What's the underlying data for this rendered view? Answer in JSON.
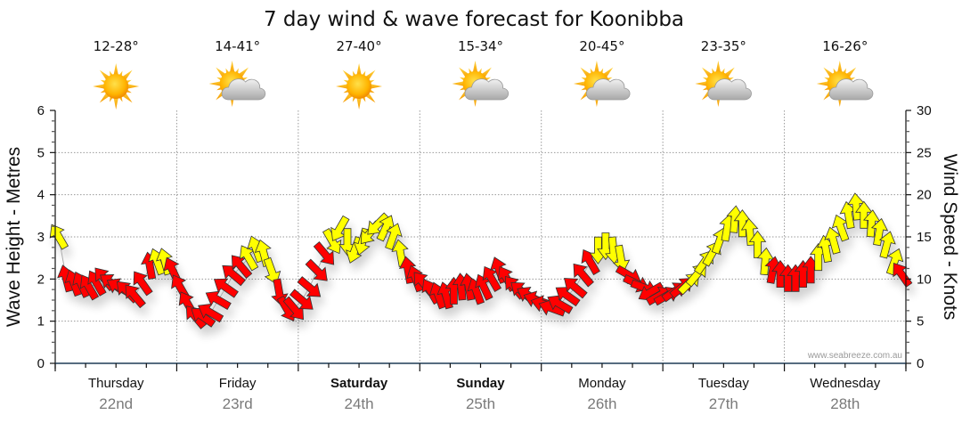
{
  "chart_data": {
    "type": "scatter",
    "title": "7 day wind & wave forecast for Koonibba",
    "ylabel_left": "Wave Height - Metres",
    "ylabel_right": "Wind Speed - Knots",
    "ylim_left": [
      0,
      6
    ],
    "ylim_right": [
      0,
      30
    ],
    "yticks_left": [
      "0",
      "1",
      "2",
      "3",
      "4",
      "5",
      "6"
    ],
    "yticks_right": [
      "0",
      "5",
      "10",
      "15",
      "20",
      "25",
      "30"
    ],
    "grid": true,
    "credit": "www.seabreeze.com.au",
    "colors": {
      "offshore": "#ff0000",
      "onshore": "#ffff00",
      "outline": "#333333",
      "axis": "#1f3b57",
      "grid": "#9a9a9a"
    },
    "days": [
      {
        "day": "Thursday",
        "date": "22nd",
        "temp": "12-28°",
        "weather": "sunny-icon",
        "weekend": false
      },
      {
        "day": "Friday",
        "date": "23rd",
        "temp": "14-41°",
        "weather": "partly-cloudy-icon",
        "weekend": false
      },
      {
        "day": "Saturday",
        "date": "24th",
        "temp": "27-40°",
        "weather": "sunny-icon",
        "weekend": true
      },
      {
        "day": "Sunday",
        "date": "25th",
        "temp": "15-34°",
        "weather": "partly-cloudy-icon",
        "weekend": true
      },
      {
        "day": "Monday",
        "date": "26th",
        "temp": "20-45°",
        "weather": "partly-cloudy-icon",
        "weekend": false
      },
      {
        "day": "Tuesday",
        "date": "27th",
        "temp": "23-35°",
        "weather": "partly-cloudy-icon",
        "weekend": false
      },
      {
        "day": "Wednesday",
        "date": "28th",
        "temp": "16-26°",
        "weather": "partly-cloudy-icon",
        "weekend": false
      }
    ],
    "wind_series": {
      "name": "Wind Speed (knots) and direction",
      "points_per_day": 16,
      "knots": [
        15,
        10,
        9.5,
        9.3,
        9,
        9.5,
        10,
        9.5,
        9,
        8.5,
        8,
        9.5,
        11.5,
        12,
        12,
        11,
        9,
        7,
        5.5,
        5.5,
        6,
        7.5,
        9,
        10.5,
        11.5,
        12.5,
        13.5,
        13,
        11,
        8.5,
        6.5,
        6.5,
        7.5,
        9,
        11,
        13,
        14.5,
        16,
        14.5,
        13.5,
        14.5,
        15.5,
        16.5,
        16,
        15,
        13,
        11,
        10,
        9.5,
        8.5,
        8,
        8,
        8.5,
        9,
        9,
        8.5,
        9,
        10,
        11,
        10,
        9,
        8.5,
        8,
        7.5,
        7,
        6.5,
        7,
        8,
        9,
        10.5,
        12,
        13.5,
        14,
        13.5,
        12.5,
        10.5,
        9.5,
        9,
        8.5,
        8,
        8,
        8.5,
        9,
        9.5,
        10.5,
        12,
        13,
        14.5,
        16,
        17,
        16.5,
        15.5,
        14,
        12,
        11,
        10.5,
        10,
        10,
        10.5,
        11,
        12.5,
        13.5,
        14.5,
        16,
        17.5,
        18.5,
        17.5,
        16.5,
        15.5,
        14,
        12,
        10.5
      ],
      "direction_deg": [
        330,
        345,
        340,
        335,
        330,
        330,
        320,
        305,
        300,
        315,
        320,
        325,
        350,
        340,
        345,
        335,
        330,
        330,
        320,
        305,
        300,
        300,
        305,
        310,
        320,
        330,
        340,
        345,
        160,
        170,
        150,
        140,
        130,
        130,
        135,
        140,
        150,
        210,
        180,
        200,
        195,
        220,
        225,
        25,
        20,
        350,
        350,
        340,
        320,
        330,
        340,
        345,
        0,
        355,
        350,
        340,
        335,
        330,
        340,
        330,
        320,
        310,
        300,
        290,
        285,
        290,
        300,
        305,
        310,
        320,
        330,
        180,
        180,
        175,
        170,
        120,
        115,
        110,
        240,
        60,
        60,
        55,
        50,
        45,
        40,
        35,
        30,
        20,
        10,
        5,
        0,
        355,
        0,
        5,
        10,
        0,
        0,
        0,
        0,
        0,
        0,
        350,
        345,
        340,
        350,
        355,
        0,
        5,
        10,
        15,
        20,
        325
      ],
      "category": [
        "onshore",
        "offshore",
        "offshore",
        "offshore",
        "offshore",
        "offshore",
        "offshore",
        "offshore",
        "offshore",
        "offshore",
        "offshore",
        "offshore",
        "offshore",
        "onshore",
        "onshore",
        "offshore",
        "offshore",
        "offshore",
        "offshore",
        "offshore",
        "offshore",
        "offshore",
        "offshore",
        "offshore",
        "offshore",
        "onshore",
        "onshore",
        "onshore",
        "onshore",
        "offshore",
        "offshore",
        "offshore",
        "offshore",
        "offshore",
        "offshore",
        "offshore",
        "onshore",
        "onshore",
        "onshore",
        "onshore",
        "onshore",
        "onshore",
        "onshore",
        "onshore",
        "onshore",
        "onshore",
        "offshore",
        "offshore",
        "offshore",
        "offshore",
        "offshore",
        "offshore",
        "offshore",
        "offshore",
        "offshore",
        "offshore",
        "offshore",
        "offshore",
        "offshore",
        "offshore",
        "offshore",
        "offshore",
        "offshore",
        "offshore",
        "offshore",
        "offshore",
        "offshore",
        "offshore",
        "offshore",
        "offshore",
        "offshore",
        "onshore",
        "onshore",
        "onshore",
        "onshore",
        "offshore",
        "offshore",
        "offshore",
        "offshore",
        "offshore",
        "offshore",
        "offshore",
        "offshore",
        "onshore",
        "onshore",
        "onshore",
        "onshore",
        "onshore",
        "onshore",
        "onshore",
        "onshore",
        "onshore",
        "onshore",
        "onshore",
        "offshore",
        "offshore",
        "offshore",
        "offshore",
        "offshore",
        "offshore",
        "onshore",
        "onshore",
        "onshore",
        "onshore",
        "onshore",
        "onshore",
        "onshore",
        "onshore",
        "onshore",
        "onshore",
        "onshore",
        "offshore"
      ]
    }
  }
}
